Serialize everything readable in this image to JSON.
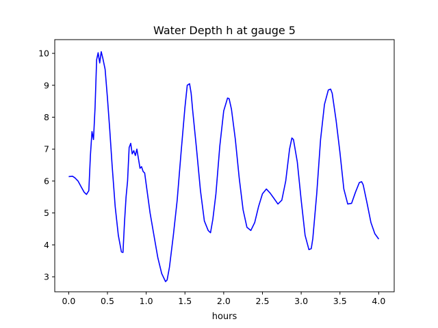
{
  "chart_data": {
    "type": "line",
    "title": "Water Depth h at gauge 5",
    "xlabel": "hours",
    "ylabel": "",
    "xlim": [
      -0.18,
      4.2
    ],
    "ylim": [
      2.53,
      10.43
    ],
    "xticks": [
      0.0,
      0.5,
      1.0,
      1.5,
      2.0,
      2.5,
      3.0,
      3.5,
      4.0
    ],
    "xtick_labels": [
      "0.0",
      "0.5",
      "1.0",
      "1.5",
      "2.0",
      "2.5",
      "3.0",
      "3.5",
      "4.0"
    ],
    "yticks": [
      3,
      4,
      5,
      6,
      7,
      8,
      9,
      10
    ],
    "ytick_labels": [
      "3",
      "4",
      "5",
      "6",
      "7",
      "8",
      "9",
      "10"
    ],
    "grid": false,
    "series": [
      {
        "color": "#0000ff",
        "x": [
          0.0,
          0.05,
          0.08,
          0.12,
          0.16,
          0.2,
          0.23,
          0.26,
          0.28,
          0.3,
          0.32,
          0.34,
          0.36,
          0.38,
          0.4,
          0.42,
          0.44,
          0.47,
          0.5,
          0.53,
          0.56,
          0.6,
          0.64,
          0.68,
          0.7,
          0.72,
          0.74,
          0.76,
          0.78,
          0.8,
          0.82,
          0.84,
          0.86,
          0.88,
          0.9,
          0.92,
          0.94,
          0.96,
          0.98,
          1.0,
          1.05,
          1.1,
          1.15,
          1.2,
          1.25,
          1.27,
          1.3,
          1.35,
          1.4,
          1.45,
          1.5,
          1.53,
          1.56,
          1.58,
          1.6,
          1.65,
          1.7,
          1.75,
          1.8,
          1.83,
          1.86,
          1.9,
          1.95,
          2.0,
          2.05,
          2.07,
          2.1,
          2.15,
          2.2,
          2.25,
          2.3,
          2.35,
          2.4,
          2.45,
          2.5,
          2.55,
          2.6,
          2.65,
          2.7,
          2.75,
          2.8,
          2.85,
          2.88,
          2.9,
          2.95,
          3.0,
          3.05,
          3.1,
          3.13,
          3.15,
          3.2,
          3.25,
          3.3,
          3.35,
          3.38,
          3.4,
          3.45,
          3.5,
          3.55,
          3.6,
          3.65,
          3.7,
          3.75,
          3.78,
          3.8,
          3.85,
          3.9,
          3.95,
          4.0
        ],
        "y": [
          6.14,
          6.15,
          6.1,
          6.0,
          5.82,
          5.65,
          5.58,
          5.7,
          6.8,
          7.55,
          7.3,
          8.3,
          9.8,
          10.02,
          9.7,
          10.05,
          9.85,
          9.5,
          8.6,
          7.6,
          6.5,
          5.2,
          4.3,
          3.78,
          3.76,
          4.7,
          5.5,
          6.0,
          7.05,
          7.18,
          6.85,
          6.95,
          6.8,
          7.0,
          6.7,
          6.4,
          6.45,
          6.3,
          6.25,
          5.9,
          5.0,
          4.3,
          3.6,
          3.1,
          2.85,
          2.9,
          3.3,
          4.3,
          5.4,
          6.9,
          8.3,
          9.0,
          9.05,
          8.75,
          8.2,
          7.0,
          5.7,
          4.75,
          4.45,
          4.38,
          4.8,
          5.6,
          7.1,
          8.2,
          8.6,
          8.58,
          8.25,
          7.3,
          6.1,
          5.1,
          4.55,
          4.45,
          4.7,
          5.2,
          5.6,
          5.75,
          5.62,
          5.45,
          5.28,
          5.4,
          6.0,
          7.0,
          7.35,
          7.3,
          6.6,
          5.4,
          4.3,
          3.85,
          3.88,
          4.2,
          5.6,
          7.3,
          8.4,
          8.85,
          8.88,
          8.75,
          7.9,
          6.9,
          5.75,
          5.28,
          5.3,
          5.65,
          5.95,
          5.98,
          5.88,
          5.3,
          4.7,
          4.35,
          4.18
        ]
      }
    ]
  }
}
